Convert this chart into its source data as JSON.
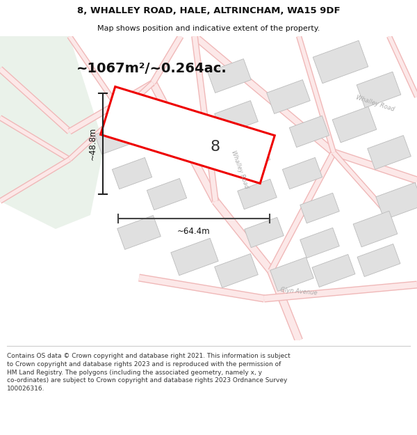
{
  "title_line1": "8, WHALLEY ROAD, HALE, ALTRINCHAM, WA15 9DF",
  "title_line2": "Map shows position and indicative extent of the property.",
  "area_text": "~1067m²/~0.264ac.",
  "dim_width": "~64.4m",
  "dim_height": "~48.8m",
  "property_number": "8",
  "footer_text": "Contains OS data © Crown copyright and database right 2021. This information is subject to Crown copyright and database rights 2023 and is reproduced with the permission of HM Land Registry. The polygons (including the associated geometry, namely x, y co-ordinates) are subject to Crown copyright and database rights 2023 Ordnance Survey 100026316.",
  "map_bg": "#f9f9f9",
  "green_area_color": "#eaf2ea",
  "building_fill": "#e0e0e0",
  "building_edge": "#bbbbbb",
  "road_fill": "#fce8e8",
  "road_edge": "#f0b8b8",
  "road_center": "#e8c8c8",
  "property_fill": "#ffffff",
  "property_edge": "#ee0000",
  "annotation_color": "#111111",
  "street_label_color": "#aaaaaa",
  "footer_bg": "#ffffff",
  "title_bg": "#ffffff"
}
